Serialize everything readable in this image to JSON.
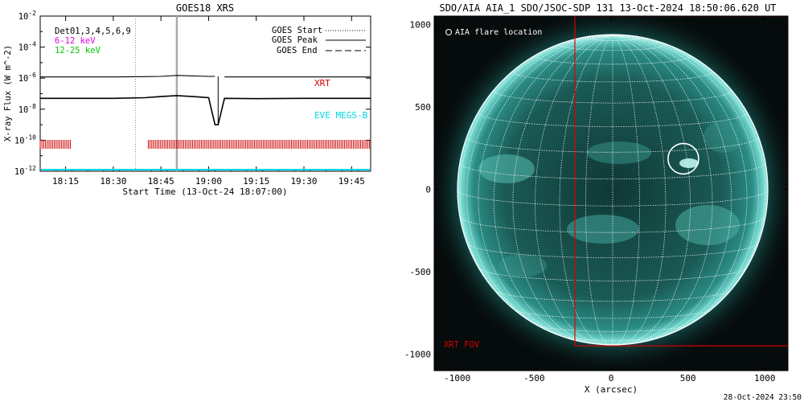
{
  "left_chart": {
    "title": "GOES18 XRS",
    "ylabel": "X-ray Flux (W m^-2)",
    "xlabel": "Start Time (13-Oct-24 18:07:00)",
    "y_tick_exponents": [
      -2,
      -4,
      -6,
      -8,
      -10,
      -12
    ],
    "x_ticks": [
      "18:15",
      "18:30",
      "18:45",
      "19:00",
      "19:15",
      "19:30",
      "19:45"
    ],
    "legend_left": [
      {
        "text": "Det01,3,4,5,6,9",
        "color": "#000000"
      },
      {
        "text": "6-12 keV",
        "color": "#e000e0"
      },
      {
        "text": "12-25 keV",
        "color": "#00c800"
      }
    ],
    "legend_right": [
      "GOES Start",
      "GOES Peak",
      "GOES End"
    ],
    "xrt_label": "XRT",
    "eve_label": "EVE MEGS-B"
  },
  "chart_data": [
    {
      "type": "line",
      "title": "GOES18 XRS",
      "xlabel": "Start Time (13-Oct-24 18:07:00)",
      "ylabel": "X-ray Flux (W m^-2)",
      "y_scale": "log",
      "ylim": [
        1e-12,
        0.01
      ],
      "xlim": [
        "18:07",
        "19:51"
      ],
      "x_ticks": [
        "18:15",
        "18:30",
        "18:45",
        "19:00",
        "19:15",
        "19:30",
        "19:45"
      ],
      "x": [
        "18:07",
        "18:30",
        "18:40",
        "18:45",
        "18:50",
        "18:55",
        "19:00",
        "19:02",
        "19:03",
        "19:05",
        "19:15",
        "19:30",
        "19:51"
      ],
      "series": [
        {
          "name": "",
          "color": "#000000",
          "values": [
            1.2e-06,
            1.2e-06,
            1.25e-06,
            1.3e-06,
            1.5e-06,
            1.4e-06,
            1.3e-06,
            1.3e-06,
            null,
            1.2e-06,
            1.2e-06,
            1.2e-06,
            1.2e-06
          ]
        },
        {
          "name": "",
          "color": "#000000",
          "values": [
            5e-08,
            5e-08,
            5.5e-08,
            6.5e-08,
            7.5e-08,
            6.5e-08,
            5.5e-08,
            1e-09,
            1e-09,
            5e-08,
            4.8e-08,
            5e-08,
            5e-08
          ]
        }
      ],
      "vertical_lines": [
        {
          "label": "GOES Start",
          "x": "18:37",
          "style": "dotted"
        },
        {
          "label": "GOES Peak",
          "x": "18:50",
          "style": "solid"
        }
      ],
      "xrt_intervals": [
        [
          "18:07",
          "18:17"
        ],
        [
          "18:41",
          "19:51"
        ]
      ]
    },
    {
      "type": "image",
      "title": "SDO/AIA AIA_1 SDO/JSOC-SDP 131 13-Oct-2024 18:50:06.620 UT",
      "xlabel": "X (arcsec)",
      "xlim": [
        -1150,
        1150
      ],
      "ylim": [
        -1100,
        1050
      ],
      "x_ticks": [
        -1000,
        -500,
        0,
        500,
        1000
      ],
      "y_ticks": [
        1000,
        500,
        0,
        -500,
        -1000
      ],
      "flare_location": {
        "x": 470,
        "y": 185
      },
      "xrt_fov": {
        "x0": -235,
        "y0": -950,
        "x1": 1150,
        "y1": 1050
      }
    }
  ],
  "right_chart": {
    "title": "SDO/AIA AIA_1 SDO/JSOC-SDP 131 13-Oct-2024 18:50:06.620 UT",
    "xlabel": "X (arcsec)",
    "x_ticks": [
      "-1000",
      "-500",
      "0",
      "500",
      "1000"
    ],
    "y_ticks": [
      "1000",
      "500",
      "0",
      "-500",
      "-1000"
    ],
    "flare_legend": "AIA flare location",
    "xrt_fov_label": "XRT FOV"
  },
  "footer": {
    "timestamp": "28-Oct-2024 23:50"
  },
  "colors": {
    "xrt": "#cc0000",
    "eve": "#00d8e8",
    "sun": "#1a9c92",
    "fov": "#dd0000"
  }
}
